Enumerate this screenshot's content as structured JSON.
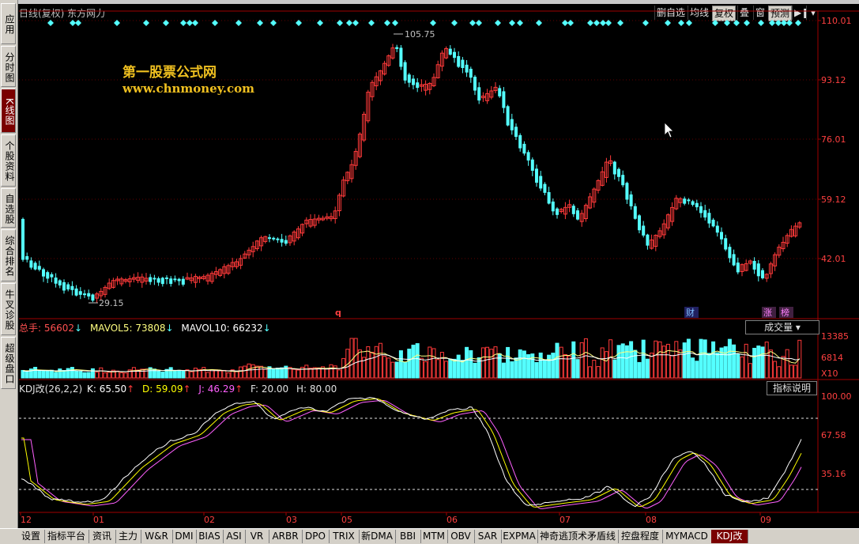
{
  "sidebar": {
    "items": [
      {
        "label": "应用"
      },
      {
        "label": "分时图"
      },
      {
        "label": "K线图",
        "active": true
      },
      {
        "label": "个股资料"
      },
      {
        "label": "自选股"
      },
      {
        "label": "综合排名"
      },
      {
        "label": "牛叉诊股"
      },
      {
        "label": "超级盘口"
      }
    ]
  },
  "header": {
    "title": "日线(复权)  东方网力",
    "buttons": [
      "删自选",
      "均线",
      "复权",
      "叠",
      "窗",
      "预测"
    ],
    "nav_icon": "play-pause-icon"
  },
  "watermark": {
    "line1": "第一股票公式网",
    "line2": "www.chnmoney.com"
  },
  "price_axis": [
    "110.01",
    "93.12",
    "76.01",
    "59.12",
    "42.01"
  ],
  "annotations": {
    "high": "105.75",
    "low": "29.15",
    "q_marker": "q",
    "cai_marker": "财",
    "zhang_marker": "涨",
    "bang_marker": "榜"
  },
  "volume": {
    "total_label": "总手: 56602",
    "mavol5": "MAVOL5: 73808",
    "mavol10": "MAVOL10: 66232",
    "axis": [
      "13385",
      "6814",
      "X10"
    ],
    "selector": "成交量"
  },
  "kdj": {
    "name": "KDJ改(26,2,2)",
    "k": "K: 65.50",
    "d": "D: 59.09",
    "j": "J: 46.29",
    "f": "F: 20.00",
    "h": "H: 80.00",
    "axis": [
      "100.00",
      "67.58",
      "35.16"
    ],
    "explain": "指标说明"
  },
  "time_axis": [
    "12",
    "01",
    "02",
    "03",
    "05",
    "06",
    "07",
    "08",
    "09"
  ],
  "bottom_tabs": [
    "设置",
    "指标平台",
    "资讯",
    "主力",
    "W&R",
    "DMI",
    "BIAS",
    "ASI",
    "VR",
    "ARBR",
    "DPO",
    "TRIX",
    "新DMA",
    "BBI",
    "MTM",
    "OBV",
    "SAR",
    "EXPMA",
    "神奇逃顶术矛盾线",
    "控盘程度",
    "MYMACD",
    "KDJ改"
  ],
  "colors": {
    "up": "#ff3a3a",
    "down": "#54ffff",
    "axis": "#a00000",
    "grid": "#600000",
    "ma5": "#ffff80",
    "ma10": "#ffffff",
    "k_line": "#ffffff",
    "d_line": "#ffff00",
    "j_line": "#ff60ff"
  }
}
